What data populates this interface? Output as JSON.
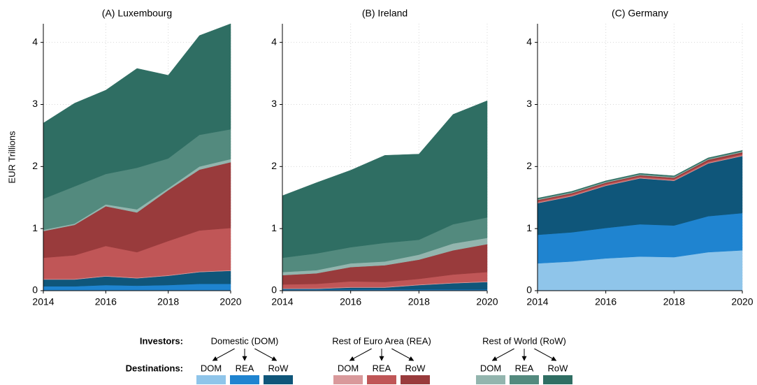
{
  "chart_data": [
    {
      "type": "area",
      "title": "(A) Luxembourg",
      "ylabel": "EUR Trillions",
      "x": [
        2014,
        2015,
        2016,
        2017,
        2018,
        2019,
        2020
      ],
      "xlim": [
        2014,
        2020
      ],
      "xticks": [
        2014,
        2016,
        2018,
        2020
      ],
      "ylim": [
        0,
        4.3
      ],
      "yticks": [
        0,
        1,
        2,
        3,
        4
      ],
      "grid": true,
      "series": [
        {
          "color": "#8fc5ea",
          "values": [
            0.01,
            0.01,
            0.01,
            0.01,
            0.01,
            0.01,
            0.01
          ]
        },
        {
          "color": "#1f84d0",
          "values": [
            0.06,
            0.06,
            0.08,
            0.07,
            0.08,
            0.1,
            0.1
          ]
        },
        {
          "color": "#0f567a",
          "values": [
            0.11,
            0.11,
            0.14,
            0.12,
            0.15,
            0.19,
            0.21
          ]
        },
        {
          "color": "#d9999b",
          "values": [
            0.01,
            0.01,
            0.01,
            0.01,
            0.01,
            0.01,
            0.01
          ]
        },
        {
          "color": "#c05657",
          "values": [
            0.34,
            0.38,
            0.48,
            0.41,
            0.55,
            0.66,
            0.68
          ]
        },
        {
          "color": "#993b3c",
          "values": [
            0.43,
            0.49,
            0.64,
            0.64,
            0.82,
            0.98,
            1.06
          ]
        },
        {
          "color": "#93b5ae",
          "values": [
            0.02,
            0.02,
            0.03,
            0.05,
            0.03,
            0.05,
            0.05
          ]
        },
        {
          "color": "#538a7e",
          "values": [
            0.5,
            0.6,
            0.49,
            0.67,
            0.48,
            0.51,
            0.48
          ]
        },
        {
          "color": "#2f6e63",
          "values": [
            1.22,
            1.34,
            1.35,
            1.6,
            1.34,
            1.6,
            1.7
          ]
        }
      ]
    },
    {
      "type": "area",
      "title": "(B) Ireland",
      "x": [
        2014,
        2015,
        2016,
        2017,
        2018,
        2019,
        2020
      ],
      "xlim": [
        2014,
        2020
      ],
      "xticks": [
        2014,
        2016,
        2018,
        2020
      ],
      "ylim": [
        0,
        4.3
      ],
      "yticks": [
        0,
        1,
        2,
        3,
        4
      ],
      "grid": true,
      "series": [
        {
          "color": "#8fc5ea",
          "values": [
            0.01,
            0.01,
            0.01,
            0.01,
            0.01,
            0.01,
            0.01
          ]
        },
        {
          "color": "#1f84d0",
          "values": [
            0.01,
            0.01,
            0.01,
            0.01,
            0.01,
            0.01,
            0.01
          ]
        },
        {
          "color": "#0f567a",
          "values": [
            0.01,
            0.01,
            0.03,
            0.03,
            0.07,
            0.1,
            0.12
          ]
        },
        {
          "color": "#d9999b",
          "values": [
            0.01,
            0.01,
            0.01,
            0.01,
            0.01,
            0.01,
            0.01
          ]
        },
        {
          "color": "#c05657",
          "values": [
            0.06,
            0.07,
            0.09,
            0.08,
            0.09,
            0.13,
            0.15
          ]
        },
        {
          "color": "#993b3c",
          "values": [
            0.15,
            0.17,
            0.23,
            0.27,
            0.31,
            0.39,
            0.45
          ]
        },
        {
          "color": "#93b5ae",
          "values": [
            0.05,
            0.05,
            0.06,
            0.06,
            0.08,
            0.11,
            0.1
          ]
        },
        {
          "color": "#538a7e",
          "values": [
            0.23,
            0.27,
            0.26,
            0.3,
            0.24,
            0.31,
            0.33
          ]
        },
        {
          "color": "#2f6e63",
          "values": [
            1.0,
            1.14,
            1.24,
            1.41,
            1.38,
            1.77,
            1.88
          ]
        }
      ]
    },
    {
      "type": "area",
      "title": "(C) Germany",
      "x": [
        2014,
        2015,
        2016,
        2017,
        2018,
        2019,
        2020
      ],
      "xlim": [
        2014,
        2020
      ],
      "xticks": [
        2014,
        2016,
        2018,
        2020
      ],
      "ylim": [
        0,
        4.3
      ],
      "yticks": [
        0,
        1,
        2,
        3,
        4
      ],
      "grid": true,
      "series": [
        {
          "color": "#8fc5ea",
          "values": [
            0.44,
            0.47,
            0.52,
            0.55,
            0.54,
            0.62,
            0.65
          ]
        },
        {
          "color": "#1f84d0",
          "values": [
            0.46,
            0.47,
            0.49,
            0.52,
            0.51,
            0.58,
            0.6
          ]
        },
        {
          "color": "#0f567a",
          "values": [
            0.51,
            0.58,
            0.68,
            0.74,
            0.72,
            0.85,
            0.92
          ]
        },
        {
          "color": "#d9999b",
          "values": [
            0.01,
            0.01,
            0.01,
            0.01,
            0.01,
            0.01,
            0.01
          ]
        },
        {
          "color": "#c05657",
          "values": [
            0.02,
            0.02,
            0.02,
            0.02,
            0.02,
            0.02,
            0.02
          ]
        },
        {
          "color": "#993b3c",
          "values": [
            0.02,
            0.02,
            0.02,
            0.02,
            0.02,
            0.03,
            0.03
          ]
        },
        {
          "color": "#93b5ae",
          "values": [
            0.01,
            0.01,
            0.01,
            0.01,
            0.01,
            0.01,
            0.01
          ]
        },
        {
          "color": "#538a7e",
          "values": [
            0.01,
            0.01,
            0.01,
            0.01,
            0.01,
            0.01,
            0.01
          ]
        },
        {
          "color": "#2f6e63",
          "values": [
            0.01,
            0.01,
            0.01,
            0.01,
            0.01,
            0.01,
            0.01
          ]
        }
      ]
    }
  ],
  "legend": {
    "investors_label": "Investors:",
    "destinations_label": "Destinations:",
    "investors": [
      "Domestic (DOM)",
      "Rest of Euro Area (REA)",
      "Rest of World (RoW)"
    ],
    "destinations": [
      "DOM",
      "REA",
      "RoW"
    ]
  }
}
